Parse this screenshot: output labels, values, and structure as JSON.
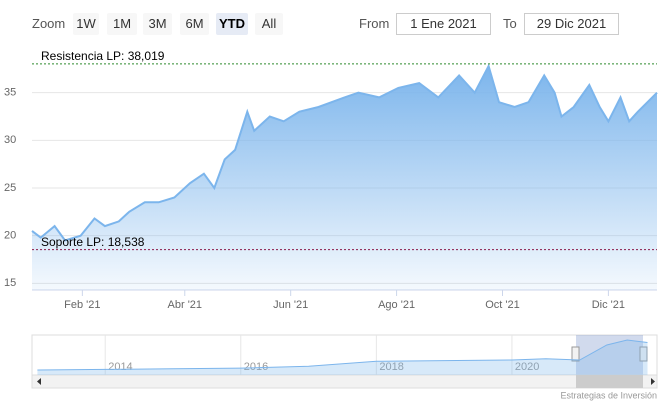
{
  "range_selector": {
    "zoom_label": "Zoom",
    "buttons": [
      "1W",
      "1M",
      "3M",
      "6M",
      "YTD",
      "All"
    ],
    "selected": "YTD",
    "from_label": "From",
    "from": "1 Ene 2021",
    "to_label": "To",
    "to": "29 Dic 2021"
  },
  "chart_data": {
    "type": "area",
    "color": "#7cb5ec",
    "x": [
      "2021-01-03",
      "2021-01-08",
      "2021-01-16",
      "2021-01-22",
      "2021-01-31",
      "2021-02-08",
      "2021-02-14",
      "2021-02-22",
      "2021-02-28",
      "2021-03-09",
      "2021-03-17",
      "2021-03-26",
      "2021-04-04",
      "2021-04-12",
      "2021-04-18",
      "2021-04-24",
      "2021-04-30",
      "2021-05-07",
      "2021-05-11",
      "2021-05-20",
      "2021-05-28",
      "2021-06-06",
      "2021-06-17",
      "2021-07-02",
      "2021-07-10",
      "2021-07-22",
      "2021-08-02",
      "2021-08-14",
      "2021-08-25",
      "2021-09-06",
      "2021-09-15",
      "2021-09-23",
      "2021-09-29",
      "2021-10-08",
      "2021-10-16",
      "2021-10-25",
      "2021-10-31",
      "2021-11-04",
      "2021-11-11",
      "2021-11-20",
      "2021-11-26",
      "2021-12-01",
      "2021-12-08",
      "2021-12-13",
      "2021-12-18",
      "2021-12-29"
    ],
    "values": [
      20.5,
      19.8,
      21,
      19.5,
      20,
      21.8,
      21,
      21.5,
      22.5,
      23.5,
      23.5,
      24,
      25.5,
      26.5,
      25,
      28,
      29,
      33,
      31,
      32.5,
      32,
      33,
      33.5,
      34.5,
      35,
      34.5,
      35.5,
      36,
      34.5,
      36.8,
      35,
      37.8,
      34,
      33.5,
      34,
      36.8,
      35,
      32.5,
      33.5,
      35.8,
      33.5,
      32,
      34.5,
      32,
      33,
      35
    ],
    "xlim": [
      "2021-01-03",
      "2021-12-29"
    ],
    "xticks": [
      {
        "value": "2021-02-01",
        "label": "Feb '21"
      },
      {
        "value": "2021-04-01",
        "label": "Abr '21"
      },
      {
        "value": "2021-06-01",
        "label": "Jun '21"
      },
      {
        "value": "2021-08-01",
        "label": "Ago '21"
      },
      {
        "value": "2021-10-01",
        "label": "Oct '21"
      },
      {
        "value": "2021-12-01",
        "label": "Dic '21"
      }
    ],
    "ylim": [
      14.3,
      40
    ],
    "yticks": [
      15,
      20,
      25,
      30,
      35
    ],
    "grid": true,
    "plot_lines": [
      {
        "label": "Resistencia LP: 38,019",
        "value": 38.019,
        "color": "#2e8b2e"
      },
      {
        "label": "Soporte LP: 18,538",
        "value": 18.538,
        "color": "#8b1a4a"
      }
    ]
  },
  "navigator": {
    "type": "area",
    "color": "#7cb5ec",
    "x": [
      2013,
      2014,
      2015,
      2016,
      2017,
      2018,
      2019,
      2020,
      2020.5,
      2021,
      2021.4,
      2021.7,
      2022
    ],
    "values": [
      12,
      12.5,
      13,
      13.5,
      15,
      19,
      19.5,
      20,
      21,
      20,
      32,
      36,
      34
    ],
    "xlim": [
      2012.92,
      2022.14
    ],
    "ylim": [
      8,
      40
    ],
    "xticks": [
      2014,
      2016,
      2018,
      2020
    ]
  },
  "credit": "Estrategias de Inversión"
}
